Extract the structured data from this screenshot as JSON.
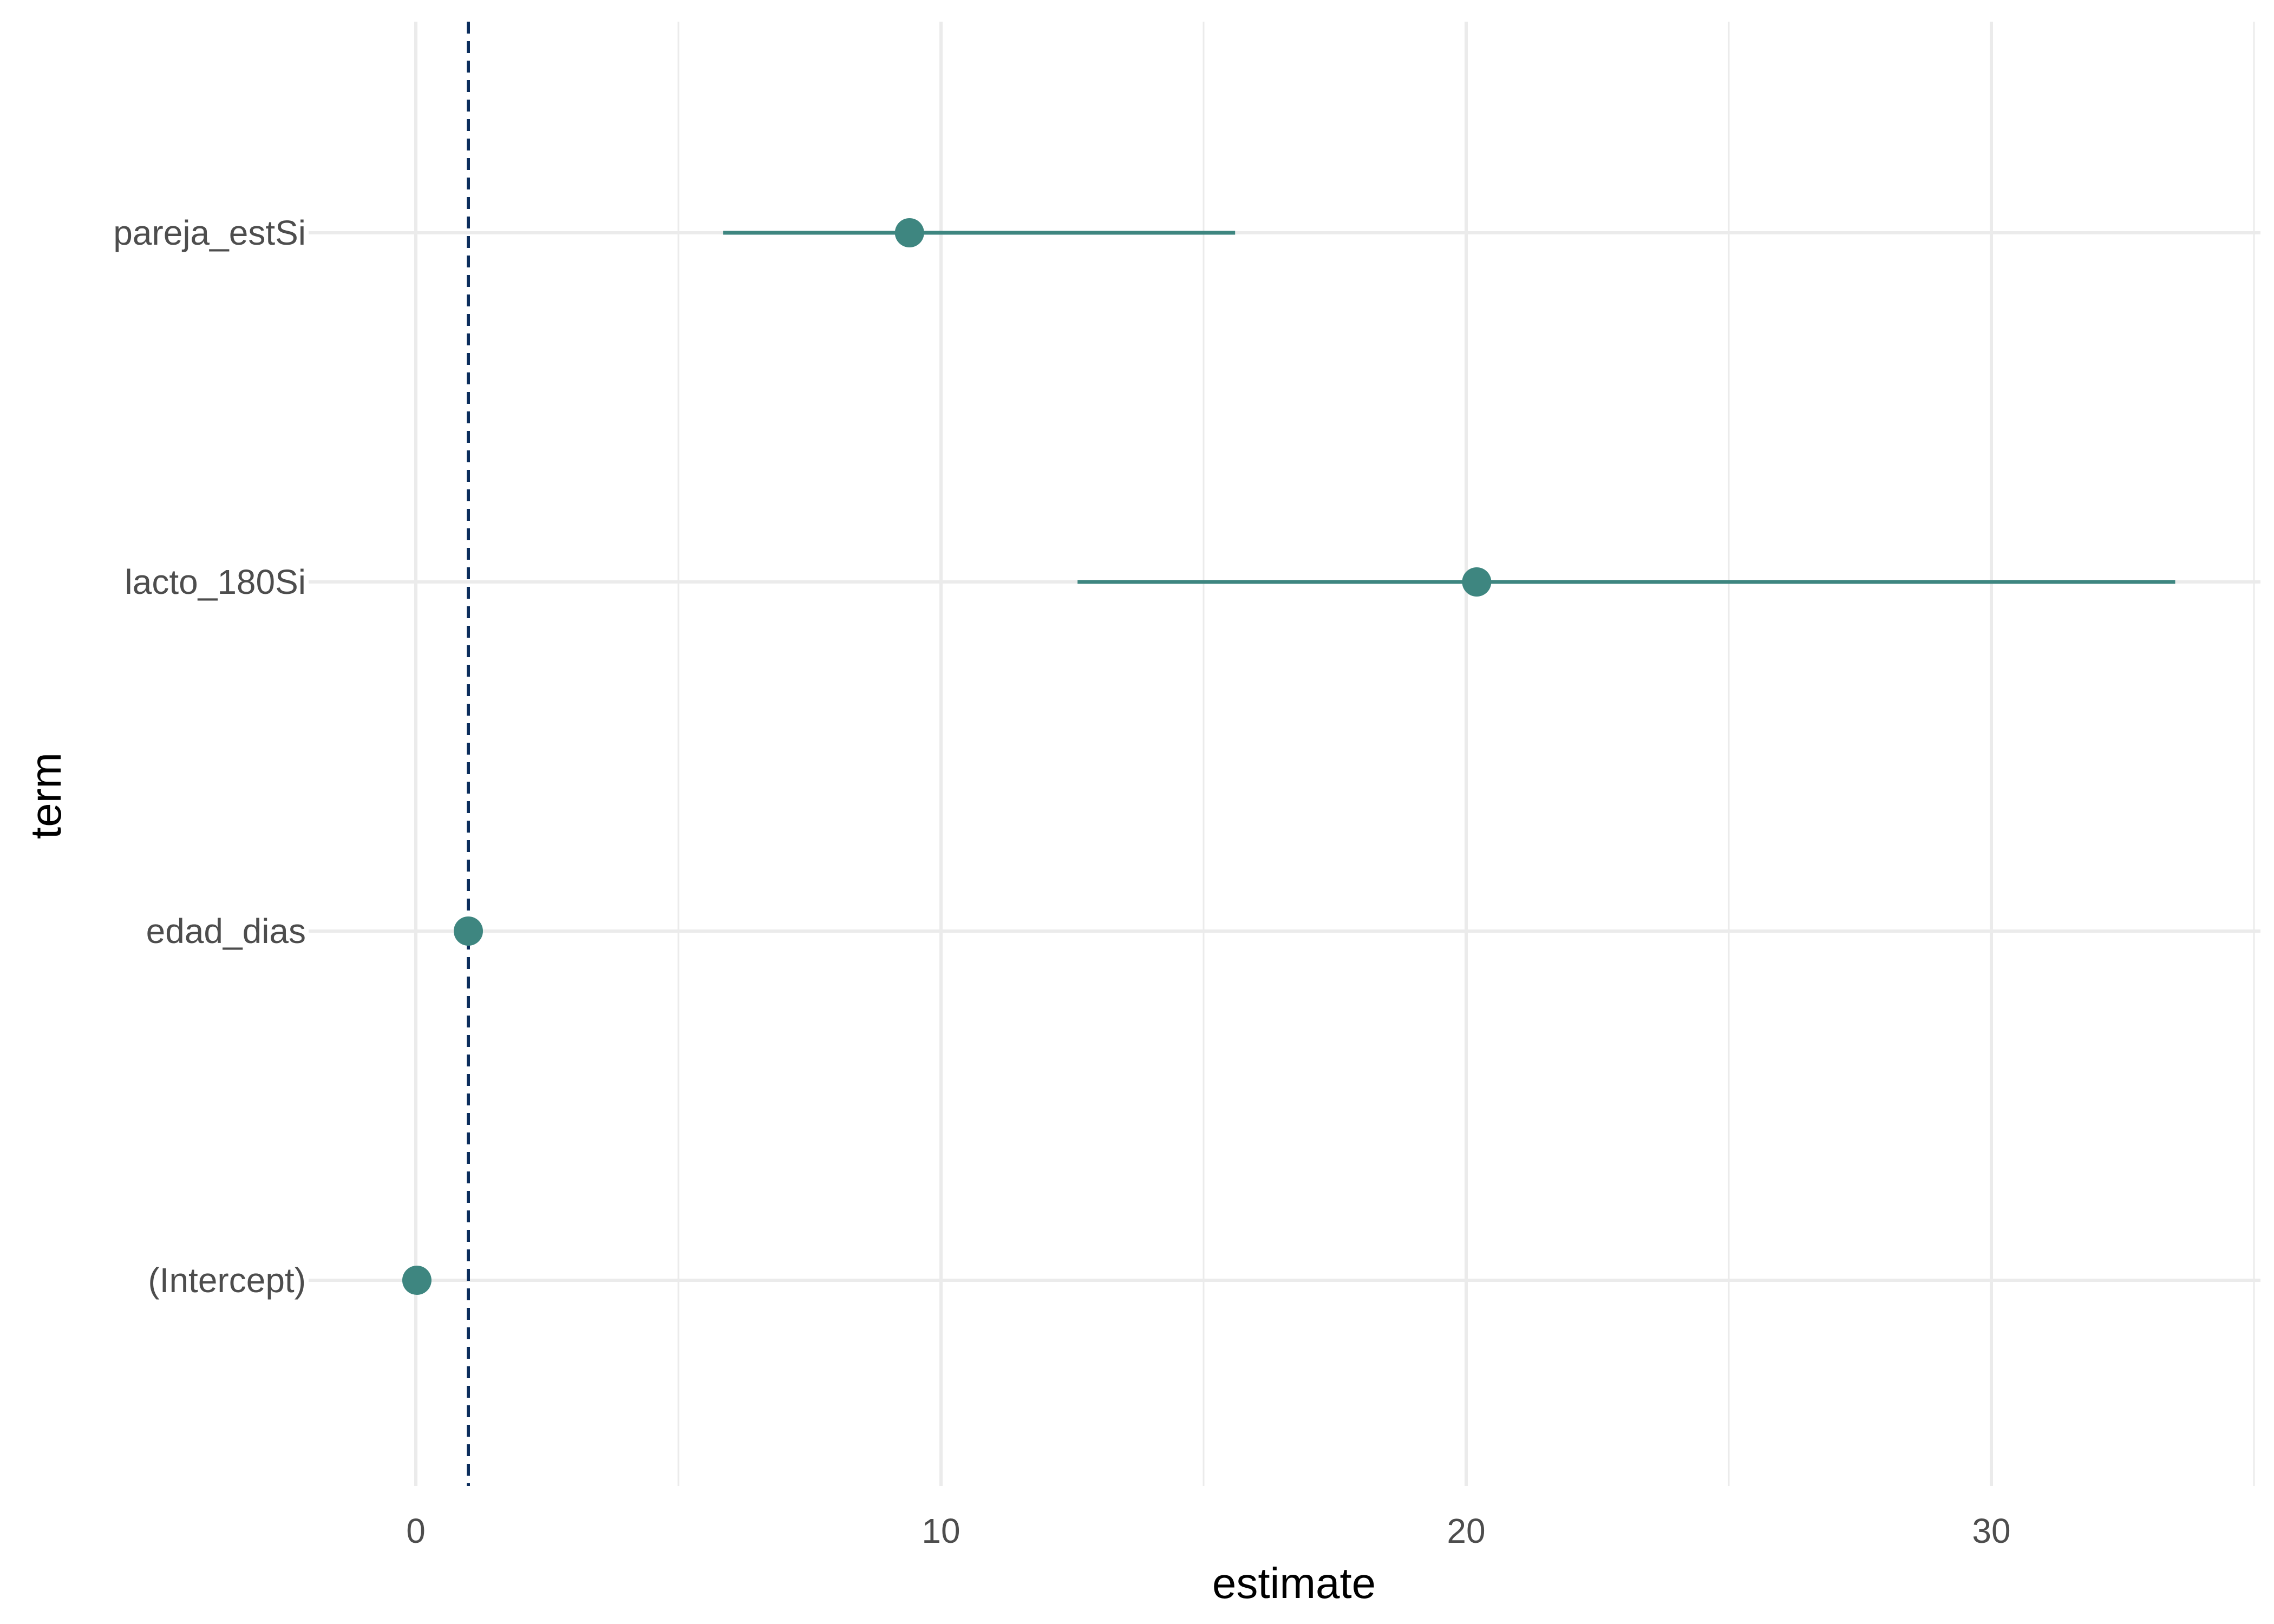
{
  "chart_data": {
    "type": "scatter",
    "title": "",
    "xlabel": "estimate",
    "ylabel": "term",
    "xlim": [
      -1.8,
      35.5
    ],
    "x_ticks": [
      0,
      10,
      20,
      30
    ],
    "x_minor_ticks": [
      5,
      15,
      25,
      35
    ],
    "categories": [
      "pareja_estSi",
      "lacto_180Si",
      "edad_dias",
      "(Intercept)"
    ],
    "points": [
      {
        "term": "pareja_estSi",
        "estimate": 9.4,
        "conf_low": 5.85,
        "conf_high": 15.6
      },
      {
        "term": "lacto_180Si",
        "estimate": 20.2,
        "conf_low": 12.6,
        "conf_high": 33.5
      },
      {
        "term": "edad_dias",
        "estimate": 1.0,
        "conf_low": 0.98,
        "conf_high": 1.02
      },
      {
        "term": "(Intercept)",
        "estimate": 0.02,
        "conf_low": 0.0,
        "conf_high": 0.04
      }
    ],
    "reference_line": {
      "x": 1,
      "style": "dashed",
      "color": "#0b2d5c"
    },
    "point_color": "#3e8680",
    "grid": true,
    "legend": "none"
  }
}
